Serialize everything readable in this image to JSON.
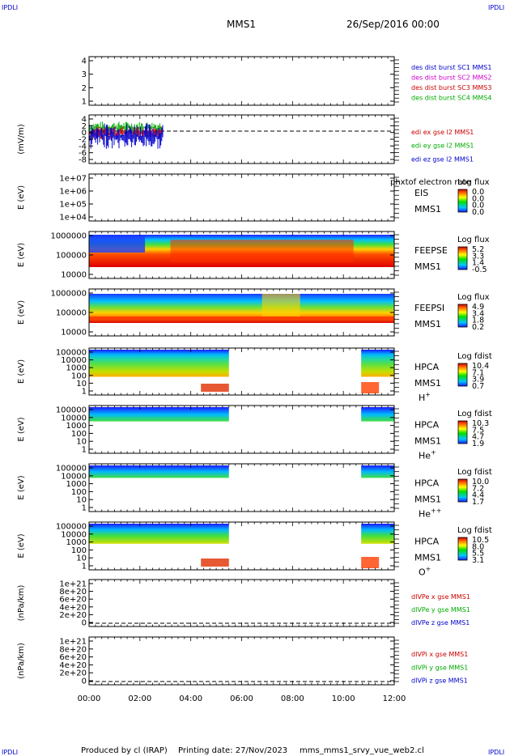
{
  "header": {
    "corner_tl": "IPDLI",
    "corner_tr": "IPDLI",
    "corner_bl": "IPDLI",
    "corner_br": "IPDLI",
    "spacecraft": "MMS1",
    "date": "26/Sep/2016 00:00"
  },
  "footer": {
    "producer": "Produced by cl (IRAP)",
    "printing_date": "Printing date: 27/Nov/2023",
    "filename": "mms_mms1_srvy_vue_web2.cl"
  },
  "xaxis_ticks": [
    "00:00",
    "02:00",
    "04:00",
    "06:00",
    "08:00",
    "10:00",
    "12:00"
  ],
  "panels": [
    {
      "id": "des",
      "ylabel": "",
      "yticks": [
        "4",
        "3",
        "2",
        "1"
      ],
      "legend": [
        {
          "text": "des dist burst SC1 MMS1",
          "color": "#0000cc"
        },
        {
          "text": "des dist burst SC2 MMS2",
          "color": "#cc00cc"
        },
        {
          "text": "des dist burst SC3 MMS3",
          "color": "#cc0000"
        },
        {
          "text": "des dist burst SC4 MMS4",
          "color": "#00aa00"
        }
      ]
    },
    {
      "id": "edi",
      "ylabel": "(mV/m)",
      "yticks": [
        "4",
        "2",
        "0",
        "-2",
        "-4",
        "-6",
        "-8"
      ],
      "legend": [
        {
          "text": "edi ex gse l2 MMS1",
          "color": "#cc0000"
        },
        {
          "text": "edi ey gse l2 MMS1",
          "color": "#00aa00"
        },
        {
          "text": "edi ez gse l2 MMS1",
          "color": "#0000cc"
        }
      ]
    },
    {
      "id": "eis",
      "ylabel": "E (eV)",
      "yticks": [
        "1e+07",
        "1e+06",
        "1e+05",
        "1e+04"
      ],
      "right_labels": [
        "EIS",
        "MMS1"
      ],
      "overlay": "phxtof electron rate",
      "colorbar_title": "Log flux",
      "colorbar_ticks": [
        "0.0",
        "0.0",
        "0.0",
        "0.0"
      ]
    },
    {
      "id": "feepse",
      "ylabel": "E (eV)",
      "yticks": [
        "1000000",
        "100000",
        "10000"
      ],
      "right_labels": [
        "FEEPSE",
        "MMS1"
      ],
      "colorbar_title": "Log flux",
      "colorbar_ticks": [
        "5.2",
        "3.3",
        "1.4",
        "-0.5"
      ]
    },
    {
      "id": "feepsi",
      "ylabel": "E (eV)",
      "yticks": [
        "1000000",
        "100000",
        "10000"
      ],
      "right_labels": [
        "FEEPSI",
        "MMS1"
      ],
      "colorbar_title": "Log flux",
      "colorbar_ticks": [
        "4.9",
        "3.4",
        "1.8",
        "0.2"
      ]
    },
    {
      "id": "hpca_h",
      "ylabel": "E (eV)",
      "yticks": [
        "100000",
        "10000",
        "1000",
        "100",
        "10",
        "1"
      ],
      "right_labels": [
        "HPCA",
        "MMS1"
      ],
      "species": "H",
      "species_sup": "+",
      "colorbar_title": "Log fdist",
      "colorbar_ticks": [
        "10.4",
        "7.1",
        "3.9",
        "0.7"
      ]
    },
    {
      "id": "hpca_he",
      "ylabel": "E (eV)",
      "yticks": [
        "100000",
        "10000",
        "1000",
        "100",
        "10",
        "1"
      ],
      "right_labels": [
        "HPCA",
        "MMS1"
      ],
      "species": "He",
      "species_sup": "+",
      "colorbar_title": "Log fdist",
      "colorbar_ticks": [
        "10.3",
        "7.5",
        "4.7",
        "1.9"
      ]
    },
    {
      "id": "hpca_he2",
      "ylabel": "E (eV)",
      "yticks": [
        "100000",
        "10000",
        "1000",
        "100",
        "10",
        "1"
      ],
      "right_labels": [
        "HPCA",
        "MMS1"
      ],
      "species": "He",
      "species_sup": "++",
      "colorbar_title": "Log fdist",
      "colorbar_ticks": [
        "10.0",
        "7.2",
        "4.4",
        "1.7"
      ]
    },
    {
      "id": "hpca_o",
      "ylabel": "E (eV)",
      "yticks": [
        "100000",
        "10000",
        "1000",
        "100",
        "10",
        "1"
      ],
      "right_labels": [
        "HPCA",
        "MMS1"
      ],
      "species": "O",
      "species_sup": "+",
      "colorbar_title": "Log fdist",
      "colorbar_ticks": [
        "10.5",
        "8.0",
        "5.5",
        "3.1"
      ]
    },
    {
      "id": "divpe",
      "ylabel": "(nPa/km)",
      "yticks": [
        "1e+21",
        "8e+20",
        "6e+20",
        "4e+20",
        "2e+20",
        "0"
      ],
      "legend": [
        {
          "text": "dIVPe x gse MMS1",
          "color": "#cc0000"
        },
        {
          "text": "dIVPe y gse MMS1",
          "color": "#00aa00"
        },
        {
          "text": "dIVPe z gse MMS1",
          "color": "#0000cc"
        }
      ]
    },
    {
      "id": "divpi",
      "ylabel": "(nPa/km)",
      "yticks": [
        "1e+21",
        "8e+20",
        "6e+20",
        "4e+20",
        "2e+20",
        "0"
      ],
      "legend": [
        {
          "text": "dIVPi x gse MMS1",
          "color": "#cc0000"
        },
        {
          "text": "dIVPi y gse MMS1",
          "color": "#00aa00"
        },
        {
          "text": "dIVPi z gse MMS1",
          "color": "#0000cc"
        }
      ]
    }
  ],
  "chart_data": {
    "type": "heatmap",
    "x_range_hours": [
      0,
      12
    ],
    "time_ticks": [
      "00:00",
      "02:00",
      "04:00",
      "06:00",
      "08:00",
      "10:00",
      "12:00"
    ],
    "hpca_coverage_hours": [
      [
        0.0,
        5.5
      ],
      [
        10.7,
        12.0
      ]
    ],
    "edi_coverage_hours": [
      0.0,
      2.9
    ],
    "edi_range_mV_per_m": [
      -8,
      4
    ]
  }
}
